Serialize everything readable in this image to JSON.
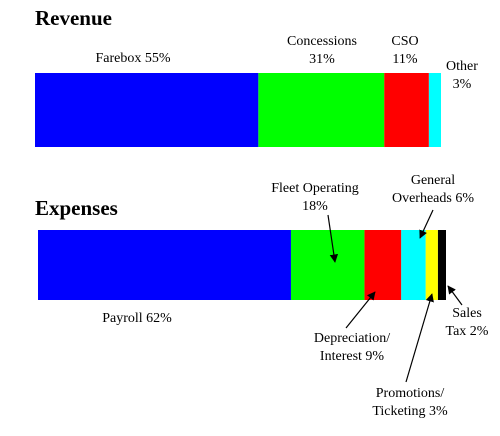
{
  "chart_data": [
    {
      "type": "bar",
      "title": "Revenue",
      "categories": [
        "Farebox 55%",
        "Concessions 31%",
        "CSO 11%",
        "Other 3%"
      ],
      "values": [
        55,
        31,
        11,
        3
      ],
      "colors": [
        "#0000ff",
        "#00ff00",
        "#ff0000",
        "#00ffff"
      ],
      "xlim": [
        0,
        100
      ]
    },
    {
      "type": "bar",
      "title": "Expenses",
      "categories": [
        "Payroll 62%",
        "Fleet Operating 18%",
        "Depreciation/ Interest 9%",
        "General Overheads 6%",
        "Promotions/ Ticketing 3%",
        "Sales Tax 2%"
      ],
      "values": [
        62,
        18,
        9,
        6,
        3,
        2
      ],
      "colors": [
        "#0000ff",
        "#00ff00",
        "#ff0000",
        "#00ffff",
        "#ffff00",
        "#000000"
      ],
      "xlim": [
        0,
        100
      ]
    }
  ]
}
